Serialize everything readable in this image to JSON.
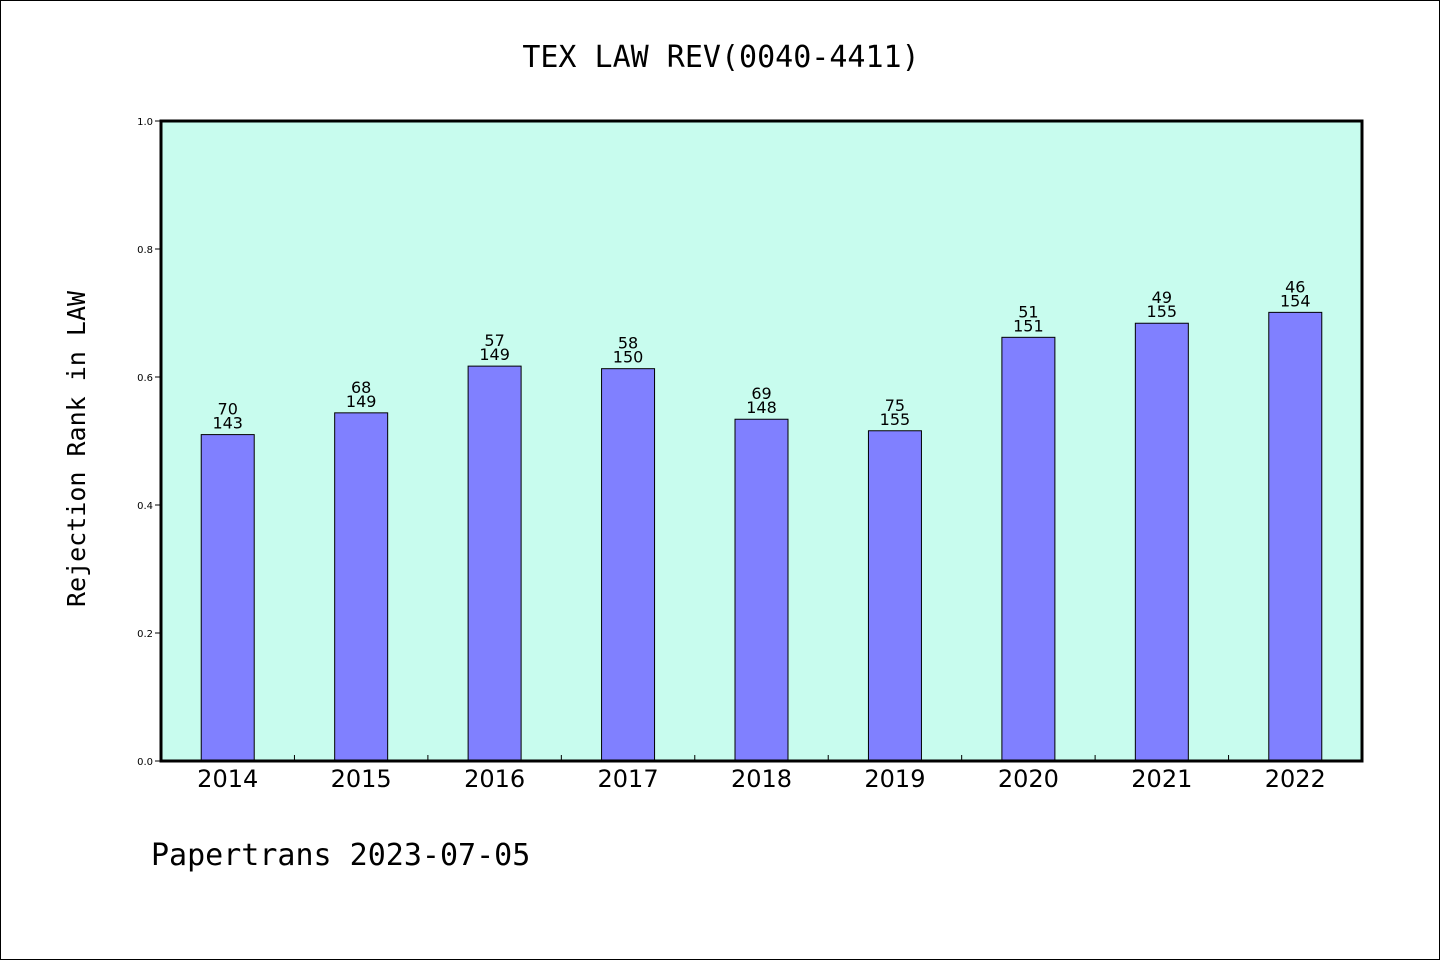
{
  "footer": "Papertrans 2023-07-05",
  "chart_data": {
    "type": "bar",
    "title": "TEX LAW REV(0040-4411)",
    "xlabel": "",
    "ylabel": "Rejection Rank in LAW",
    "ylim": [
      0,
      1.0
    ],
    "yticks": [
      "0.0",
      "0.2",
      "0.4",
      "0.6",
      "0.8",
      "1.0"
    ],
    "categories": [
      "2014",
      "2015",
      "2016",
      "2017",
      "2018",
      "2019",
      "2020",
      "2021",
      "2022"
    ],
    "values": [
      0.51,
      0.544,
      0.617,
      0.613,
      0.534,
      0.516,
      0.662,
      0.684,
      0.701
    ],
    "rank_labels": [
      "70",
      "68",
      "57",
      "58",
      "69",
      "75",
      "51",
      "49",
      "46"
    ],
    "total_labels": [
      "143",
      "149",
      "149",
      "150",
      "148",
      "155",
      "151",
      "155",
      "154"
    ],
    "grid": false,
    "legend": "none",
    "colors": {
      "bar_fill": "#8080ff",
      "plot_background": "#c8fcee",
      "axis": "#000000"
    }
  }
}
